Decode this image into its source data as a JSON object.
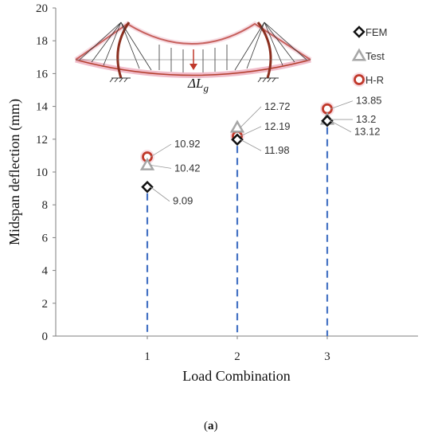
{
  "chart_data": {
    "type": "scatter",
    "xlabel": "Load Combination",
    "ylabel": "Midspan deflection (mm)",
    "categories": [
      "1",
      "2",
      "3"
    ],
    "ylim": [
      0,
      20
    ],
    "yticks": [
      "0",
      "2",
      "4",
      "6",
      "8",
      "10",
      "12",
      "14",
      "16",
      "18",
      "20"
    ],
    "grid": false,
    "legend_position": "top-right",
    "series": [
      {
        "name": "FEM",
        "marker": "diamond",
        "color": "#111111",
        "values": [
          9.09,
          11.98,
          13.12
        ]
      },
      {
        "name": "Test",
        "marker": "triangle",
        "color": "#a6a6a6",
        "values": [
          10.42,
          12.72,
          13.2
        ]
      },
      {
        "name": "H-R",
        "marker": "circle",
        "color": "#c0392b",
        "values": [
          10.92,
          12.19,
          13.85
        ]
      }
    ],
    "data_labels": [
      [
        "9.09",
        "11.98",
        "13.12"
      ],
      [
        "10.42",
        "12.72",
        "13.2"
      ],
      [
        "10.92",
        "12.19",
        "13.85"
      ]
    ],
    "inset_label": "ΔL",
    "inset_label_sub": "g",
    "drop_line_color": "#4472c4",
    "caption": "(a)",
    "caption_bold": "a"
  }
}
